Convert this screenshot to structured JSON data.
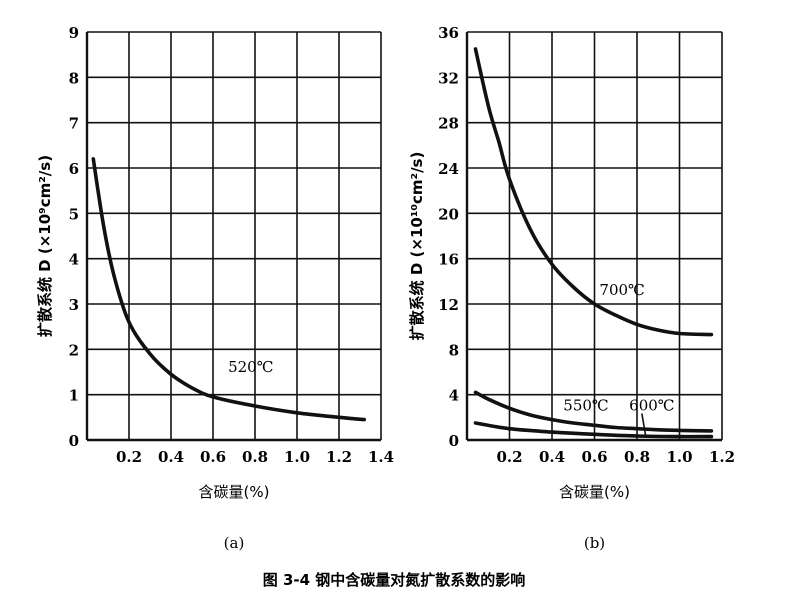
{
  "caption": "图 3-4   钢中含碳量对氮扩散系数的影响",
  "chart_data": [
    {
      "type": "line",
      "panel_label": "(a)",
      "xlabel": "含碳量(%)",
      "ylabel": "扩散系统 D (×10⁹cm²/s)",
      "x_ticks": [
        "0.2",
        "0.4",
        "0.6",
        "0.8",
        "1.0",
        "1.2",
        "1.4"
      ],
      "y_ticks": [
        "0",
        "1",
        "2",
        "3",
        "4",
        "5",
        "6",
        "7",
        "8",
        "9"
      ],
      "xlim": [
        0,
        1.4
      ],
      "ylim": [
        0,
        9
      ],
      "grid": true,
      "series": [
        {
          "name": "520℃",
          "x": [
            0.03,
            0.08,
            0.13,
            0.2,
            0.3,
            0.4,
            0.5,
            0.6,
            0.8,
            1.0,
            1.2,
            1.32
          ],
          "y": [
            6.2,
            4.7,
            3.6,
            2.6,
            1.9,
            1.45,
            1.15,
            0.95,
            0.75,
            0.6,
            0.5,
            0.45
          ]
        }
      ]
    },
    {
      "type": "line",
      "panel_label": "(b)",
      "xlabel": "含碳量(%)",
      "ylabel": "扩散系统 D (×10¹⁰cm²/s)",
      "x_ticks": [
        "0.2",
        "0.4",
        "0.6",
        "0.8",
        "1.0",
        "1.2"
      ],
      "y_ticks": [
        "0",
        "4",
        "8",
        "12",
        "16",
        "20",
        "24",
        "28",
        "32",
        "36"
      ],
      "xlim": [
        0,
        1.2
      ],
      "ylim": [
        0,
        36
      ],
      "grid": true,
      "series": [
        {
          "name": "700℃",
          "x": [
            0.04,
            0.1,
            0.15,
            0.2,
            0.3,
            0.4,
            0.5,
            0.6,
            0.7,
            0.8,
            0.9,
            1.0,
            1.15
          ],
          "y": [
            34.5,
            29.5,
            26.3,
            23.0,
            18.5,
            15.5,
            13.5,
            12.0,
            11.0,
            10.2,
            9.7,
            9.4,
            9.3
          ]
        },
        {
          "name": "550℃",
          "x": [
            0.04,
            0.1,
            0.2,
            0.3,
            0.4,
            0.5,
            0.6,
            0.7,
            0.8,
            0.9,
            1.0,
            1.15
          ],
          "y": [
            4.2,
            3.6,
            2.8,
            2.2,
            1.8,
            1.5,
            1.3,
            1.1,
            1.0,
            0.9,
            0.85,
            0.8
          ]
        },
        {
          "name": "600℃",
          "x": [
            0.04,
            0.2,
            0.4,
            0.6,
            0.8,
            1.0,
            1.15
          ],
          "y": [
            1.5,
            1.0,
            0.7,
            0.5,
            0.35,
            0.3,
            0.3
          ]
        }
      ]
    }
  ]
}
